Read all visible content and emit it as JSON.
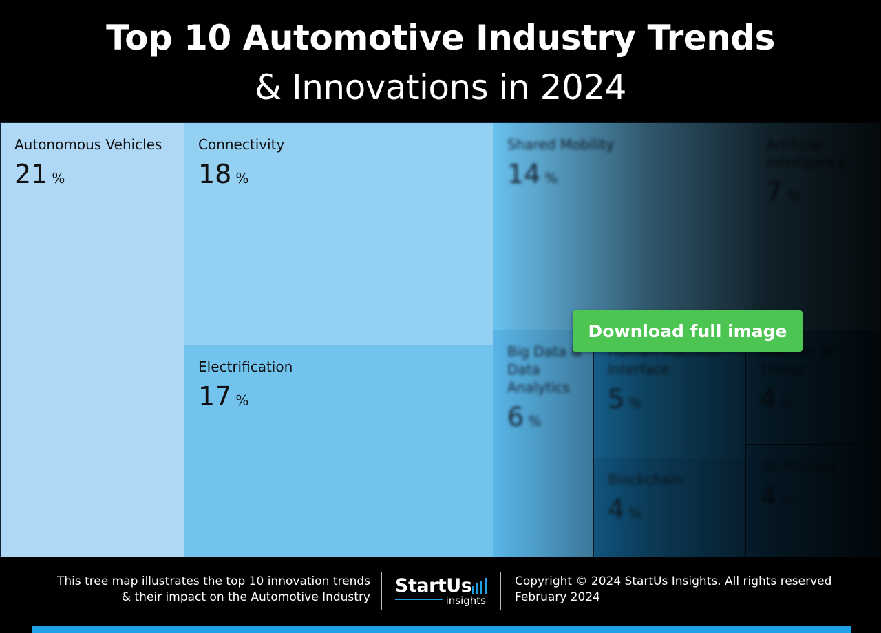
{
  "header": {
    "title_line1": "Top 10 Automotive Industry Trends",
    "title_line2": "& Innovations in 2024"
  },
  "chart_data": {
    "type": "treemap",
    "unit": "%",
    "items": [
      {
        "name": "Autonomous Vehicles",
        "value": 21,
        "color": "#aed8f6"
      },
      {
        "name": "Connectivity",
        "value": 18,
        "color": "#93d0f2"
      },
      {
        "name": "Electrification",
        "value": 17,
        "color": "#72c4ef"
      },
      {
        "name": "Shared Mobility",
        "value": 14,
        "color": "#6ac0ee"
      },
      {
        "name": "Artificial Intelligence",
        "value": 7,
        "color": "#5ab8ea"
      },
      {
        "name": "Big Data & Data Analytics",
        "value": 6,
        "color": "#5ab5e8"
      },
      {
        "name": "Human-Machine Interface",
        "value": 5,
        "color": "#1f8fd0"
      },
      {
        "name": "Internet of Things",
        "value": 4,
        "color": "#1c85c4"
      },
      {
        "name": "Blockchain",
        "value": 4,
        "color": "#1a82c2"
      },
      {
        "name": "3D Printing",
        "value": 4,
        "color": "#1a7fc0"
      }
    ]
  },
  "download_button": "Download full image",
  "footer": {
    "description_line1": "This tree map illustrates the top 10 innovation trends",
    "description_line2": "& their impact on the Automotive Industry",
    "logo_main": "StartUs",
    "logo_sub": "insights",
    "copyright": "Copyright © 2024 StartUs Insights. All rights reserved",
    "date": "February 2024"
  },
  "colors": {
    "accent": "#1ea1e6",
    "button": "#4cc552"
  }
}
